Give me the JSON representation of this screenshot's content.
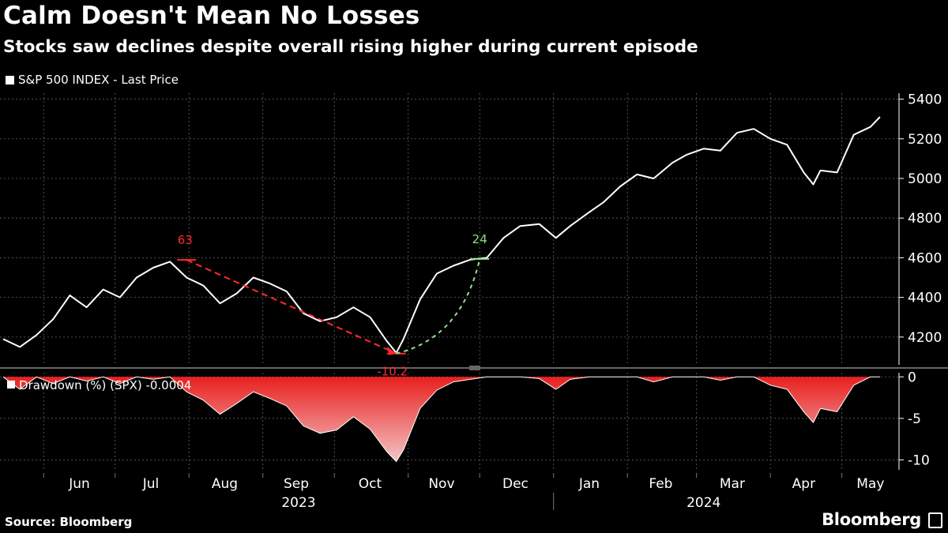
{
  "header": {
    "title": "Calm Doesn't Mean No Losses",
    "subtitle": "Stocks saw declines despite overall rising higher during current episode"
  },
  "footer": {
    "source": "Source: Bloomberg",
    "brand": "Bloomberg"
  },
  "colors": {
    "background": "#000000",
    "price_line": "#ffffff",
    "drawdown_fill": "#e8201f",
    "decline_annotation": "#ff2a2a",
    "recovery_annotation": "#8fe08a"
  },
  "chart_data": [
    {
      "type": "line",
      "legend": "S&P 500 INDEX - Last Price",
      "ylim": [
        4060,
        5430
      ],
      "yticks": [
        "5400",
        "5200",
        "5000",
        "4800",
        "4600",
        "4400",
        "4200"
      ],
      "x": [
        "2023-05-15",
        "2023-05-22",
        "2023-05-29",
        "2023-06-05",
        "2023-06-12",
        "2023-06-19",
        "2023-06-26",
        "2023-07-03",
        "2023-07-10",
        "2023-07-17",
        "2023-07-24",
        "2023-07-31",
        "2023-08-07",
        "2023-08-14",
        "2023-08-21",
        "2023-08-28",
        "2023-09-04",
        "2023-09-11",
        "2023-09-18",
        "2023-09-25",
        "2023-10-02",
        "2023-10-09",
        "2023-10-16",
        "2023-10-23",
        "2023-10-27",
        "2023-10-30",
        "2023-11-06",
        "2023-11-13",
        "2023-11-20",
        "2023-11-27",
        "2023-12-04",
        "2023-12-11",
        "2023-12-18",
        "2023-12-26",
        "2024-01-02",
        "2024-01-08",
        "2024-01-16",
        "2024-01-22",
        "2024-01-29",
        "2024-02-05",
        "2024-02-12",
        "2024-02-20",
        "2024-02-26",
        "2024-03-04",
        "2024-03-11",
        "2024-03-18",
        "2024-03-25",
        "2024-04-01",
        "2024-04-08",
        "2024-04-15",
        "2024-04-19",
        "2024-04-22",
        "2024-04-29",
        "2024-05-06",
        "2024-05-13",
        "2024-05-17"
      ],
      "series": [
        {
          "values": [
            4190,
            4150,
            4210,
            4290,
            4410,
            4350,
            4440,
            4400,
            4500,
            4550,
            4580,
            4500,
            4460,
            4370,
            4420,
            4500,
            4470,
            4430,
            4320,
            4280,
            4300,
            4350,
            4300,
            4180,
            4120,
            4190,
            4390,
            4520,
            4560,
            4590,
            4600,
            4700,
            4760,
            4770,
            4700,
            4760,
            4830,
            4880,
            4960,
            5020,
            5000,
            5080,
            5120,
            5150,
            5140,
            5230,
            5250,
            5200,
            5170,
            5030,
            4970,
            5040,
            5030,
            5220,
            5260,
            5310
          ]
        }
      ],
      "annotations": [
        {
          "label": "63",
          "date": "2023-07-31",
          "value": 4589,
          "note": "peak"
        },
        {
          "label": "-10.2",
          "date": "2023-10-27",
          "value": 4117,
          "note": "trough"
        },
        {
          "label": "24",
          "date": "2023-12-01",
          "value": 4594,
          "note": "recovery"
        }
      ]
    },
    {
      "type": "area",
      "legend": "Drawdown (%) (SPX) -0.0004",
      "ylim": [
        -11.2,
        0.5
      ],
      "yticks": [
        "0",
        "-5",
        "-10"
      ],
      "x": [
        "2023-05-15",
        "2023-05-22",
        "2023-05-29",
        "2023-06-05",
        "2023-06-12",
        "2023-06-19",
        "2023-06-26",
        "2023-07-03",
        "2023-07-10",
        "2023-07-17",
        "2023-07-24",
        "2023-07-31",
        "2023-08-07",
        "2023-08-14",
        "2023-08-21",
        "2023-08-28",
        "2023-09-04",
        "2023-09-11",
        "2023-09-18",
        "2023-09-25",
        "2023-10-02",
        "2023-10-09",
        "2023-10-16",
        "2023-10-23",
        "2023-10-27",
        "2023-10-30",
        "2023-11-06",
        "2023-11-13",
        "2023-11-20",
        "2023-11-27",
        "2023-12-04",
        "2023-12-11",
        "2023-12-18",
        "2023-12-26",
        "2024-01-02",
        "2024-01-08",
        "2024-01-16",
        "2024-01-22",
        "2024-01-29",
        "2024-02-05",
        "2024-02-12",
        "2024-02-20",
        "2024-02-26",
        "2024-03-04",
        "2024-03-11",
        "2024-03-18",
        "2024-03-25",
        "2024-04-01",
        "2024-04-08",
        "2024-04-15",
        "2024-04-19",
        "2024-04-22",
        "2024-04-29",
        "2024-05-06",
        "2024-05-13",
        "2024-05-17"
      ],
      "series": [
        {
          "values": [
            0,
            -1.5,
            0,
            -0.8,
            0,
            -0.5,
            0,
            -0.8,
            0,
            -0.3,
            0,
            -1.8,
            -2.8,
            -4.5,
            -3.2,
            -1.8,
            -2.6,
            -3.5,
            -5.9,
            -6.8,
            -6.4,
            -4.8,
            -6.3,
            -9.0,
            -10.2,
            -8.8,
            -3.8,
            -1.6,
            -0.6,
            -0.3,
            0,
            0,
            0,
            -0.2,
            -1.5,
            -0.3,
            0,
            0,
            0,
            0,
            -0.6,
            0,
            0,
            0,
            -0.4,
            0,
            0,
            -1.0,
            -1.5,
            -4.2,
            -5.5,
            -3.8,
            -4.2,
            -1.0,
            0,
            0
          ]
        }
      ]
    }
  ],
  "x_axis": {
    "months": [
      "Jun",
      "Jul",
      "Aug",
      "Sep",
      "Oct",
      "Nov",
      "Dec",
      "Jan",
      "Feb",
      "Mar",
      "Apr",
      "May"
    ],
    "years": [
      "2023",
      "2024"
    ]
  }
}
